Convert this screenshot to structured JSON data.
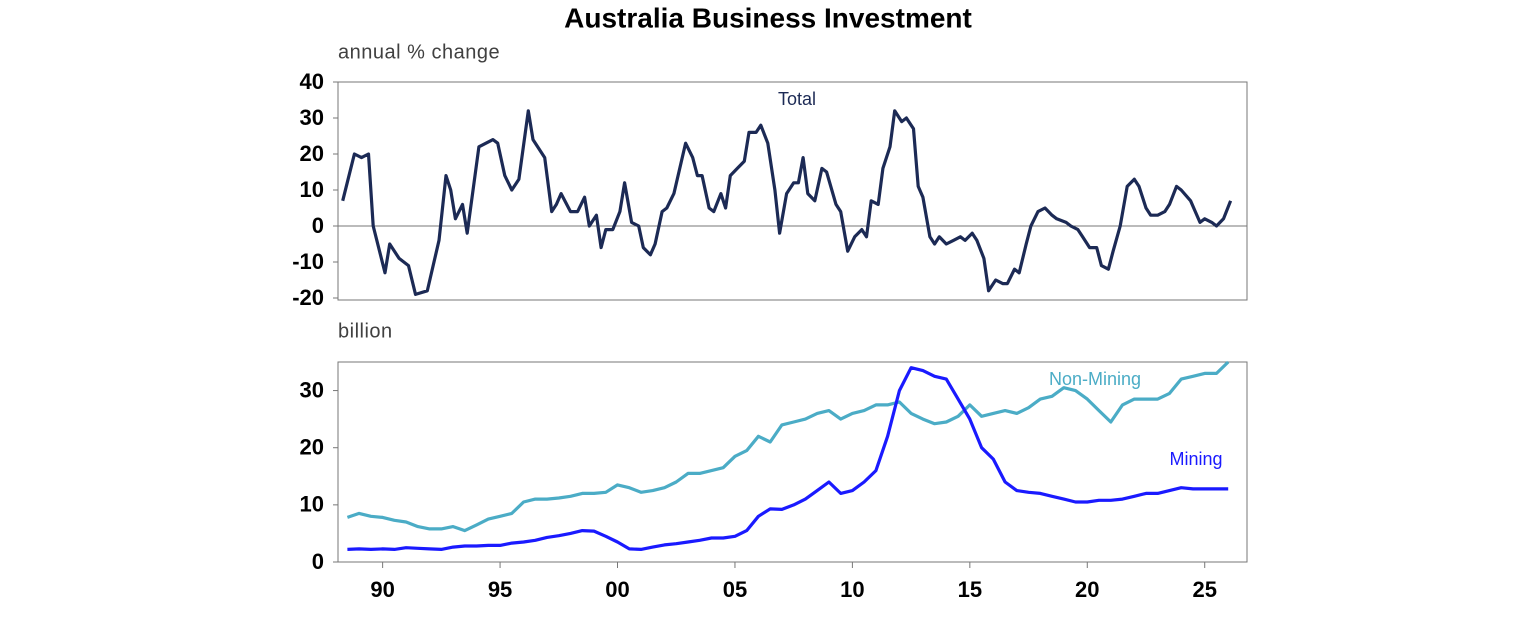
{
  "chart_data": [
    {
      "type": "line",
      "title": "Australia Business Investment",
      "y_label": "annual % change",
      "annotation": "Total",
      "x": [
        1988.3,
        1988.8,
        1989.1,
        1989.4,
        1989.6,
        1990.1,
        1990.3,
        1990.7,
        1991.1,
        1991.4,
        1991.9,
        1992.4,
        1992.7,
        1992.9,
        1993.1,
        1993.4,
        1993.6,
        1994.1,
        1994.7,
        1994.9,
        1995.2,
        1995.5,
        1995.8,
        1996.2,
        1996.4,
        1996.9,
        1997.2,
        1997.4,
        1997.6,
        1998.0,
        1998.3,
        1998.6,
        1998.8,
        1999.1,
        1999.3,
        1999.5,
        1999.8,
        2000.1,
        2000.3,
        2000.6,
        2000.9,
        2001.1,
        2001.4,
        2001.6,
        2001.9,
        2002.1,
        2002.4,
        2002.9,
        2003.2,
        2003.4,
        2003.6,
        2003.9,
        2004.1,
        2004.4,
        2004.6,
        2004.8,
        2005.1,
        2005.4,
        2005.6,
        2005.9,
        2006.1,
        2006.4,
        2006.7,
        2006.9,
        2007.2,
        2007.5,
        2007.7,
        2007.9,
        2008.1,
        2008.4,
        2008.7,
        2008.9,
        2009.3,
        2009.5,
        2009.8,
        2010.1,
        2010.4,
        2010.6,
        2010.8,
        2011.1,
        2011.3,
        2011.6,
        2011.8,
        2012.1,
        2012.3,
        2012.6,
        2012.8,
        2013.0,
        2013.3,
        2013.5,
        2013.7,
        2014.0,
        2014.3,
        2014.6,
        2014.8,
        2015.1,
        2015.3,
        2015.6,
        2015.8,
        2016.1,
        2016.4,
        2016.6,
        2016.9,
        2017.1,
        2017.4,
        2017.6,
        2017.9,
        2018.2,
        2018.5,
        2018.7,
        2019.1,
        2019.3,
        2019.6,
        2019.8,
        2020.1,
        2020.4,
        2020.6,
        2020.9,
        2021.1,
        2021.4,
        2021.7,
        2022.0,
        2022.2,
        2022.5,
        2022.7,
        2023.0,
        2023.3,
        2023.5,
        2023.8,
        2024.0,
        2024.4,
        2024.6,
        2024.8,
        2025.0,
        2025.3,
        2025.5,
        2025.8,
        2026.1
      ],
      "series": [
        {
          "name": "Total",
          "color": "#1c2a55",
          "values": [
            7,
            20,
            19,
            20,
            0,
            -13,
            -5,
            -9,
            -11,
            -19,
            -18,
            -4,
            14,
            10,
            2,
            6,
            -2,
            22,
            24,
            23,
            14,
            10,
            13,
            32,
            24,
            19,
            4,
            6,
            9,
            4,
            4,
            8,
            0,
            3,
            -6,
            -1,
            -1,
            4,
            12,
            1,
            0,
            -6,
            -8,
            -5,
            4,
            5,
            9,
            23,
            19,
            14,
            14,
            5,
            4,
            9,
            5,
            14,
            16,
            18,
            26,
            26,
            28,
            23,
            10,
            -2,
            9,
            12,
            12,
            19,
            9,
            7,
            16,
            15,
            6,
            4,
            -7,
            -3,
            -1,
            -3,
            7,
            6,
            16,
            22,
            32,
            29,
            30,
            27,
            11,
            8,
            -3,
            -5,
            -3,
            -5,
            -4,
            -3,
            -4,
            -2,
            -4,
            -9,
            -18,
            -15,
            -16,
            -16,
            -12,
            -13,
            -5,
            0,
            4,
            5,
            3,
            2,
            1,
            0,
            -1,
            -3,
            -6,
            -6,
            -11,
            -12,
            -7,
            0,
            11,
            13,
            11,
            5,
            3,
            3,
            4,
            6,
            11,
            10,
            7,
            4,
            1,
            2,
            1,
            0,
            2,
            7
          ]
        }
      ],
      "xlim": [
        1988.1,
        2026.8
      ],
      "ylim": [
        -20,
        40
      ],
      "yticks": [
        -20,
        -10,
        0,
        10,
        20,
        30,
        40
      ],
      "zero_line": true
    },
    {
      "type": "line",
      "y_label": "billion",
      "x": [
        1988.5,
        1989,
        1989.5,
        1990,
        1990.5,
        1991,
        1991.5,
        1992,
        1992.5,
        1993,
        1993.5,
        1994,
        1994.5,
        1995,
        1995.5,
        1996,
        1996.5,
        1997,
        1997.5,
        1998,
        1998.5,
        1999,
        1999.5,
        2000,
        2000.5,
        2001,
        2001.5,
        2002,
        2002.5,
        2003,
        2003.5,
        2004,
        2004.5,
        2005,
        2005.5,
        2006,
        2006.5,
        2007,
        2007.5,
        2008,
        2008.5,
        2009,
        2009.5,
        2010,
        2010.5,
        2011,
        2011.5,
        2012,
        2012.5,
        2013,
        2013.5,
        2014,
        2014.5,
        2015,
        2015.5,
        2016,
        2016.5,
        2017,
        2017.5,
        2018,
        2018.5,
        2019,
        2019.5,
        2020,
        2020.5,
        2021,
        2021.5,
        2022,
        2022.5,
        2023,
        2023.5,
        2024,
        2024.5,
        2025,
        2025.5,
        2026
      ],
      "series": [
        {
          "name": "Non-Mining",
          "color": "#4bacc6",
          "values": [
            7.8,
            8.5,
            8,
            7.8,
            7.3,
            7,
            6.2,
            5.8,
            5.8,
            6.2,
            5.5,
            6.5,
            7.5,
            8,
            8.5,
            10.5,
            11,
            11,
            11.2,
            11.5,
            12,
            12,
            12.2,
            13.5,
            13,
            12.2,
            12.5,
            13,
            14,
            15.5,
            15.5,
            16,
            16.5,
            18.5,
            19.5,
            22,
            21,
            24,
            24.5,
            25,
            26,
            26.5,
            25,
            26,
            26.5,
            27.5,
            27.5,
            28,
            26,
            25,
            24.2,
            24.5,
            25.5,
            27.5,
            25.5,
            26,
            26.5,
            26,
            27,
            28.5,
            29,
            30.5,
            30,
            28.5,
            26.5,
            24.5,
            27.5,
            28.5,
            28.5,
            28.5,
            29.5,
            32,
            32.5,
            33,
            33,
            35
          ]
        },
        {
          "name": "Mining",
          "color": "#1a1aff",
          "values": [
            2.2,
            2.3,
            2.2,
            2.3,
            2.2,
            2.5,
            2.4,
            2.3,
            2.2,
            2.6,
            2.8,
            2.8,
            2.9,
            2.9,
            3.3,
            3.5,
            3.8,
            4.3,
            4.6,
            5,
            5.5,
            5.4,
            4.5,
            3.5,
            2.3,
            2.2,
            2.6,
            3,
            3.2,
            3.5,
            3.8,
            4.2,
            4.2,
            4.5,
            5.5,
            8,
            9.3,
            9.2,
            10,
            11,
            12.5,
            14,
            12,
            12.5,
            14,
            16,
            22,
            30,
            34,
            33.5,
            32.5,
            32,
            28.5,
            25,
            20,
            18,
            14,
            12.5,
            12.2,
            12,
            11.5,
            11,
            10.5,
            10.5,
            10.8,
            10.8,
            11,
            11.5,
            12,
            12,
            12.5,
            13,
            12.8,
            12.8,
            12.8,
            12.8
          ]
        }
      ],
      "xlim": [
        1988.1,
        2026.8
      ],
      "ylim": [
        0,
        35
      ],
      "yticks": [
        0,
        10,
        20,
        30
      ],
      "xticks": [
        {
          "value": 1990,
          "label": "90"
        },
        {
          "value": 1995,
          "label": "95"
        },
        {
          "value": 2000,
          "label": "00"
        },
        {
          "value": 2005,
          "label": "05"
        },
        {
          "value": 2010,
          "label": "10"
        },
        {
          "value": 2015,
          "label": "15"
        },
        {
          "value": 2020,
          "label": "20"
        },
        {
          "value": 2025,
          "label": "25"
        }
      ]
    }
  ]
}
